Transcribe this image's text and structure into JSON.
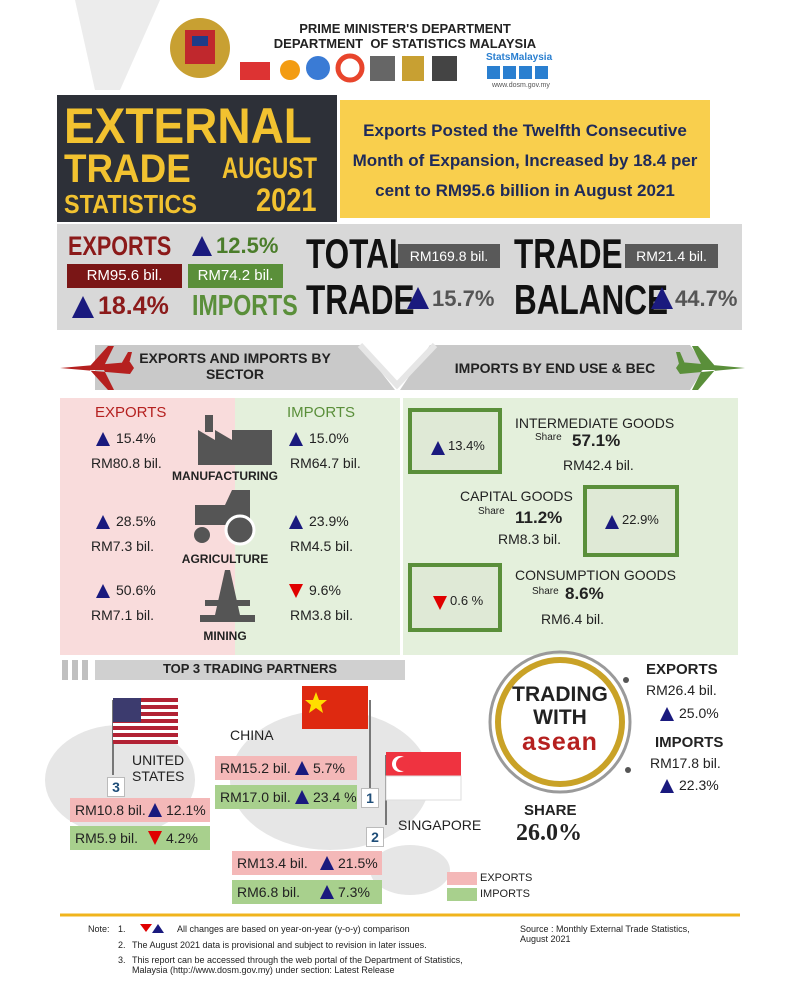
{
  "header": {
    "department": "PRIME MINISTER'S DEPARTMENT",
    "agency": "DEPARTMENT  OF STATISTICS MALAYSIA",
    "social": "StatsMalaysia",
    "website": "www.dosm.gov.my"
  },
  "title": {
    "line1": "EXTERNAL",
    "line2": "TRADE",
    "line3": "STATISTICS",
    "month": "AUGUST",
    "year": "2021"
  },
  "headline": "Exports Posted the Twelfth Consecutive Month of Expansion,  Increased by 18.4 per cent to RM95.6 billion in August 2021",
  "summary": {
    "exports_label": "EXPORTS",
    "exports_value": "RM95.6 bil.",
    "exports_change": "18.4%",
    "imports_change": "12.5%",
    "imports_value": "RM74.2 bil.",
    "imports_label": "IMPORTS",
    "total_label_1": "TOTAL",
    "total_label_2": "TRADE",
    "total_value": "RM169.8 bil.",
    "total_change": "15.7%",
    "balance_label_1": "TRADE",
    "balance_label_2": "BALANCE",
    "balance_value": "RM21.4 bil.",
    "balance_change": "44.7%"
  },
  "sector": {
    "title": "EXPORTS AND IMPORTS BY SECTOR",
    "exports_heading": "EXPORTS",
    "imports_heading": "IMPORTS",
    "rows": [
      {
        "name": "MANUFACTURING",
        "exports_change": "15.4%",
        "exports_value": "RM80.8 bil.",
        "imports_change": "15.0%",
        "imports_value": "RM64.7 bil."
      },
      {
        "name": "AGRICULTURE",
        "exports_change": "28.5%",
        "exports_value": "RM7.3 bil.",
        "imports_change": "23.9%",
        "imports_value": "RM4.5 bil."
      },
      {
        "name": "MINING",
        "exports_change": "50.6%",
        "exports_value": "RM7.1 bil.",
        "imports_change": "9.6%",
        "imports_value": "RM3.8 bil."
      }
    ]
  },
  "end_use": {
    "title": "IMPORTS BY END USE & BEC",
    "items": [
      {
        "name": "INTERMEDIATE GOODS",
        "share_label": "Share",
        "share": "57.1%",
        "value": "RM42.4 bil.",
        "change": "13.4%"
      },
      {
        "name": "CAPITAL GOODS",
        "share_label": "Share",
        "share": "11.2%",
        "value": "RM8.3 bil.",
        "change": "22.9%"
      },
      {
        "name": "CONSUMPTION GOODS",
        "share_label": "Share",
        "share": "8.6%",
        "value": "RM6.4 bil.",
        "change": "0.6 %"
      }
    ]
  },
  "partners": {
    "title": "TOP 3 TRADING PARTNERS",
    "list": [
      {
        "rank": "3",
        "name": "UNITED STATES",
        "exports_value": "RM10.8 bil.",
        "exports_change": "12.1%",
        "imports_value": "RM5.9 bil.",
        "imports_change": "4.2%"
      },
      {
        "rank": "1",
        "name": "CHINA",
        "exports_value": "RM15.2 bil.",
        "exports_change": "5.7%",
        "imports_value": "RM17.0 bil.",
        "imports_change": "23.4 %"
      },
      {
        "rank": "2",
        "name": "SINGAPORE",
        "exports_value": "RM13.4 bil.",
        "exports_change": "21.5%",
        "imports_value": "RM6.8 bil.",
        "imports_change": "7.3%"
      }
    ]
  },
  "asean": {
    "heading_1": "TRADING",
    "heading_2": "WITH",
    "heading_3": "asean",
    "share_label": "SHARE",
    "share": "26.0%",
    "exports_label": "EXPORTS",
    "exports_value": "RM26.4 bil.",
    "exports_change": "25.0%",
    "imports_label": "IMPORTS",
    "imports_value": "RM17.8 bil.",
    "imports_change": "22.3%"
  },
  "legend": {
    "exports": "EXPORTS",
    "imports": "IMPORTS"
  },
  "notes": {
    "label": "Note:",
    "items": [
      {
        "number": "1.",
        "text": "All changes are based on year-on-year (y-o-y) comparison"
      },
      {
        "number": "2.",
        "text": "The August 2021 data is provisional and subject to revision in later issues."
      },
      {
        "number": "3.",
        "text": "This report can be accessed through the web portal of the Department of Statistics, Malaysia (http://www.dosm.gov.my) under section: Latest Release"
      }
    ],
    "source": "Source : Monthly External Trade Statistics, August 2021"
  }
}
